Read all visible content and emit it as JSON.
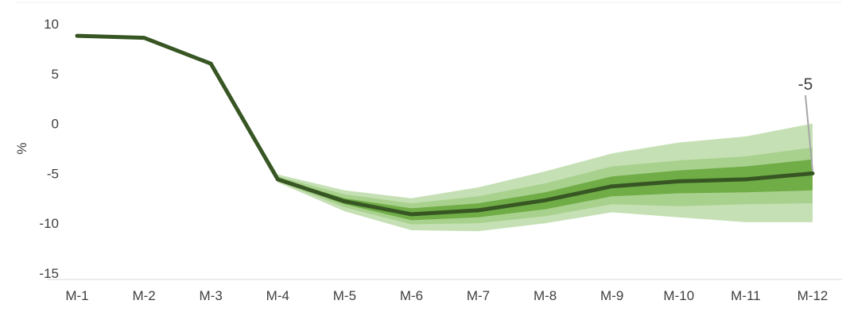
{
  "chart_data": {
    "type": "area",
    "categories": [
      "M-1",
      "M-2",
      "M-3",
      "M-4",
      "M-5",
      "M-6",
      "M-7",
      "M-8",
      "M-9",
      "M-10",
      "M-11",
      "M-12"
    ],
    "ylabel": "%",
    "xlabel": "",
    "ylim": [
      -15,
      10
    ],
    "yticks": [
      10,
      5,
      0,
      -5,
      -10,
      -15
    ],
    "grid": false,
    "legend": "none",
    "series": [
      {
        "values": [
          8.8,
          8.6,
          6.0,
          -5.6,
          -7.8,
          -9.1,
          -8.7,
          -7.7,
          -6.3,
          -5.8,
          -5.6,
          -5.0
        ]
      }
    ],
    "bands": [
      {
        "lower": [
          8.8,
          8.6,
          6.0,
          -5.9,
          -8.8,
          -10.7,
          -10.8,
          -10.0,
          -8.9,
          -9.4,
          -9.9,
          -9.9
        ],
        "upper": [
          8.8,
          8.6,
          6.0,
          -5.1,
          -6.7,
          -7.5,
          -6.4,
          -4.8,
          -3.0,
          -1.9,
          -1.3,
          0.0
        ]
      },
      {
        "lower": [
          8.8,
          8.6,
          6.0,
          -5.8,
          -8.4,
          -10.1,
          -10.0,
          -9.3,
          -8.1,
          -8.3,
          -8.1,
          -8.0
        ],
        "upper": [
          8.8,
          8.6,
          6.0,
          -5.3,
          -7.1,
          -8.0,
          -7.3,
          -6.0,
          -4.3,
          -3.7,
          -3.3,
          -2.4
        ]
      },
      {
        "lower": [
          8.8,
          8.6,
          6.0,
          -5.7,
          -8.1,
          -9.7,
          -9.4,
          -8.6,
          -7.3,
          -7.0,
          -6.9,
          -6.7
        ],
        "upper": [
          8.8,
          8.6,
          6.0,
          -5.5,
          -7.5,
          -8.5,
          -8.0,
          -6.9,
          -5.3,
          -4.7,
          -4.3,
          -3.6
        ]
      }
    ],
    "annotation": {
      "category": "M-12",
      "text": "-5"
    },
    "colors": {
      "line": "#375623",
      "band_outer": "#c5e0b4",
      "band_middle": "#a9d18e",
      "band_inner": "#70ad47",
      "leader": "#a6a6a6",
      "axis": "#d9d9d9",
      "text": "#404040"
    }
  }
}
